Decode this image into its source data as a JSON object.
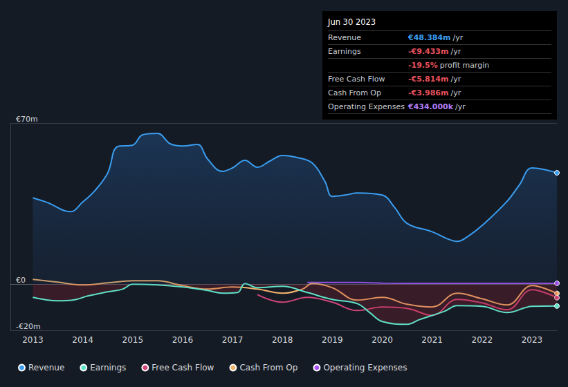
{
  "chart_data": {
    "type": "line",
    "xlim": [
      2012.55,
      2023.5
    ],
    "xticks": [
      2013,
      2014,
      2015,
      2016,
      2017,
      2018,
      2019,
      2020,
      2021,
      2022,
      2023
    ],
    "ylim": [
      -20,
      70
    ],
    "yticks": [
      {
        "value": -20,
        "label": "-€20m"
      },
      {
        "value": 0,
        "label": "€0"
      },
      {
        "value": 70,
        "label": "€70m"
      }
    ],
    "grid": true,
    "legend": "bottom-left",
    "series": [
      {
        "name": "Revenue",
        "color": "#3a9df0",
        "x": [
          2013.0,
          2013.3,
          2013.75,
          2014.0,
          2014.25,
          2014.5,
          2014.7,
          2015.0,
          2015.2,
          2015.5,
          2015.75,
          2016.0,
          2016.3,
          2016.5,
          2016.8,
          2017.0,
          2017.25,
          2017.5,
          2017.75,
          2018.0,
          2018.3,
          2018.6,
          2018.85,
          2019.0,
          2019.25,
          2019.5,
          2020.0,
          2020.25,
          2020.5,
          2021.0,
          2021.3,
          2021.5,
          2021.75,
          2022.0,
          2022.5,
          2022.75,
          2023.0,
          2023.5
        ],
        "values": [
          37.5,
          35.4,
          31.5,
          35.7,
          40.8,
          48.3,
          59.8,
          60.4,
          64.9,
          65.5,
          61.0,
          60.0,
          60.7,
          54.4,
          49.0,
          50.5,
          53.8,
          50.8,
          53.5,
          55.9,
          55.0,
          52.6,
          44.7,
          38.1,
          38.7,
          39.6,
          38.7,
          33.3,
          26.4,
          22.8,
          19.8,
          18.6,
          21.3,
          25.5,
          36.0,
          43.2,
          50.5,
          48.384
        ]
      },
      {
        "name": "Earnings",
        "color": "#5fe0c8",
        "x": [
          2013.0,
          2013.5,
          2013.8,
          2014.1,
          2014.5,
          2014.8,
          2015.0,
          2015.5,
          2016.0,
          2016.5,
          2016.8,
          2017.1,
          2017.25,
          2017.5,
          2018.0,
          2018.5,
          2019.0,
          2019.5,
          2019.75,
          2020.0,
          2020.5,
          2020.75,
          2021.25,
          2021.5,
          2022.0,
          2022.5,
          2023.0,
          2023.5
        ],
        "values": [
          -5.7,
          -7.2,
          -6.9,
          -5.1,
          -3.3,
          -2.1,
          0.0,
          -0.3,
          -1.2,
          -2.7,
          -3.9,
          -3.6,
          0.3,
          -1.5,
          -0.9,
          -3.6,
          -6.6,
          -8.4,
          -12.3,
          -16.2,
          -17.4,
          -15.3,
          -11.7,
          -9.3,
          -9.6,
          -12.3,
          -9.6,
          -9.433
        ]
      },
      {
        "name": "Free Cash Flow",
        "color": "#d1457a",
        "x": [
          2017.5,
          2018.0,
          2018.5,
          2019.0,
          2019.5,
          2020.0,
          2020.5,
          2021.0,
          2021.5,
          2022.0,
          2022.5,
          2023.0,
          2023.5
        ],
        "values": [
          -4.5,
          -7.8,
          -5.7,
          -7.8,
          -11.4,
          -9.9,
          -10.5,
          -13.5,
          -6.6,
          -8.1,
          -11.1,
          -2.4,
          -5.814
        ]
      },
      {
        "name": "Cash From Op",
        "color": "#f2b36b",
        "x": [
          2013.0,
          2013.5,
          2014.0,
          2014.5,
          2015.0,
          2015.5,
          2016.0,
          2016.5,
          2017.0,
          2017.5,
          2018.0,
          2018.4,
          2018.6,
          2019.0,
          2019.5,
          2020.0,
          2020.5,
          2021.0,
          2021.5,
          2022.0,
          2022.5,
          2023.0,
          2023.5
        ],
        "values": [
          2.1,
          0.9,
          -0.3,
          0.6,
          1.5,
          1.5,
          -0.6,
          -2.1,
          -1.2,
          -2.1,
          -3.9,
          -2.1,
          0.3,
          -1.5,
          -6.9,
          -5.7,
          -8.7,
          -9.9,
          -3.9,
          -6.3,
          -9.0,
          -0.6,
          -3.986
        ]
      },
      {
        "name": "Operating Expenses",
        "color": "#a855f7",
        "x": [
          2018.5,
          2019.5,
          2020.0,
          2021.0,
          2022.0,
          2023.5
        ],
        "values": [
          0.8,
          0.8,
          0.5,
          0.4,
          0.4,
          0.434
        ]
      }
    ],
    "annotations": {
      "date": "Jun 30 2023",
      "rows": [
        {
          "label": "Revenue",
          "value": "€48.384m",
          "unit": "/yr",
          "color": "#3a9df0"
        },
        {
          "label": "Earnings",
          "value": "-€9.433m",
          "unit": "/yr",
          "color": "#e8505b"
        },
        {
          "value": "-19.5%",
          "unit": "profit margin",
          "color": "#e8505b"
        },
        {
          "label": "Free Cash Flow",
          "value": "-€5.814m",
          "unit": "/yr",
          "color": "#e8505b"
        },
        {
          "label": "Cash From Op",
          "value": "-€3.986m",
          "unit": "/yr",
          "color": "#e8505b"
        },
        {
          "label": "Operating Expenses",
          "value": "€434.000k",
          "unit": "/yr",
          "color": "#b07cf5"
        }
      ]
    }
  }
}
